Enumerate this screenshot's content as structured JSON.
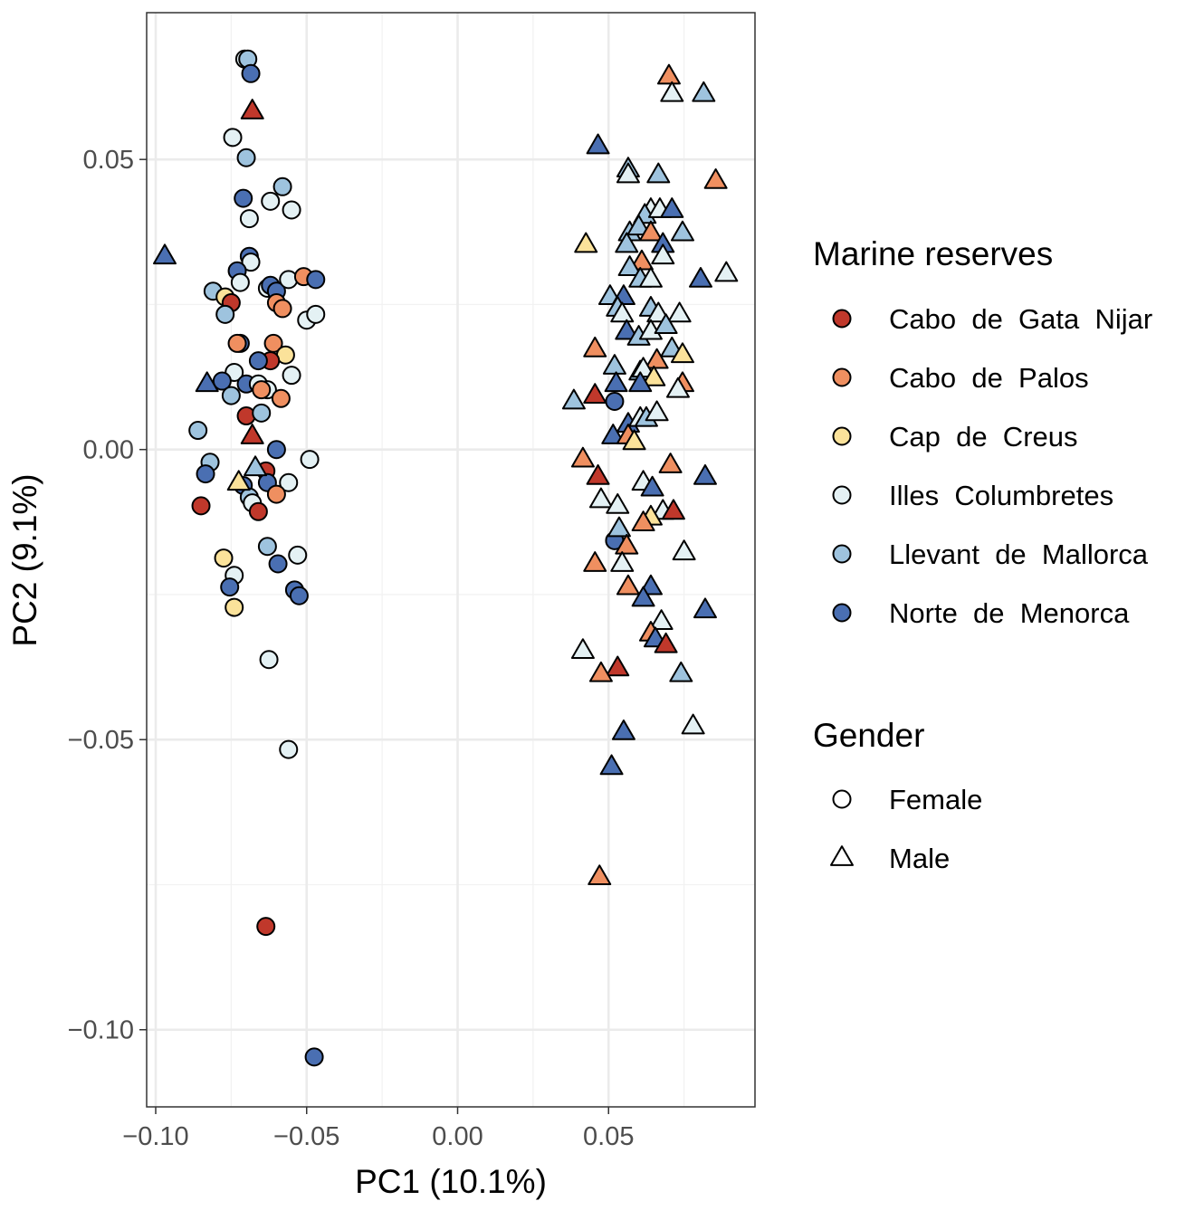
{
  "chart_data": {
    "type": "scatter",
    "xlabel": "PC1 (10.1%)",
    "ylabel": "PC2 (9.1%)",
    "xlim": [
      -0.103,
      0.0985
    ],
    "ylim": [
      -0.1133,
      0.0753
    ],
    "x_ticks": [
      -0.1,
      -0.05,
      0.0,
      0.05
    ],
    "x_tick_labels": [
      "−0.10",
      "−0.05",
      "0.00",
      "0.05"
    ],
    "y_ticks": [
      0.05,
      0.0,
      -0.05,
      -0.1
    ],
    "y_tick_labels": [
      "0.05",
      "0.00",
      "−0.05",
      "−0.10"
    ],
    "grid": true,
    "legend_position": "right",
    "legend": {
      "color_title": "Marine reserves",
      "color_entries": [
        {
          "key": "gata",
          "label": "Cabo  de  Gata  Nijar",
          "color": "#c0382b"
        },
        {
          "key": "palos",
          "label": "Cabo  de  Palos",
          "color": "#ef8f60"
        },
        {
          "key": "creus",
          "label": "Cap  de  Creus",
          "color": "#fbe29a"
        },
        {
          "key": "colum",
          "label": "Illes  Columbretes",
          "color": "#e4f1f4"
        },
        {
          "key": "llev",
          "label": "Llevant  de  Mallorca",
          "color": "#9ec3de"
        },
        {
          "key": "norte",
          "label": "Norte  de  Menorca",
          "color": "#4a6fb2"
        }
      ],
      "shape_title": "Gender",
      "shape_entries": [
        {
          "key": "F",
          "label": "Female",
          "shape": "circle"
        },
        {
          "key": "M",
          "label": "Male",
          "shape": "triangle"
        }
      ]
    },
    "points": [
      [
        -0.0705,
        0.0673,
        "colum",
        "F"
      ],
      [
        -0.0695,
        0.0673,
        "llev",
        "F"
      ],
      [
        -0.0685,
        0.0648,
        "norte",
        "F"
      ],
      [
        -0.0745,
        0.0538,
        "colum",
        "F"
      ],
      [
        -0.07,
        0.0503,
        "llev",
        "F"
      ],
      [
        -0.071,
        0.0433,
        "norte",
        "F"
      ],
      [
        -0.069,
        0.0398,
        "colum",
        "F"
      ],
      [
        -0.062,
        0.0428,
        "colum",
        "F"
      ],
      [
        -0.058,
        0.0453,
        "llev",
        "F"
      ],
      [
        -0.055,
        0.0413,
        "colum",
        "F"
      ],
      [
        -0.069,
        0.0333,
        "norte",
        "F"
      ],
      [
        -0.0685,
        0.0323,
        "colum",
        "F"
      ],
      [
        -0.073,
        0.0308,
        "norte",
        "F"
      ],
      [
        -0.072,
        0.0288,
        "colum",
        "F"
      ],
      [
        -0.063,
        0.0278,
        "colum",
        "F"
      ],
      [
        -0.062,
        0.0283,
        "norte",
        "F"
      ],
      [
        -0.06,
        0.0273,
        "norte",
        "F"
      ],
      [
        -0.056,
        0.0293,
        "colum",
        "F"
      ],
      [
        -0.051,
        0.0298,
        "palos",
        "F"
      ],
      [
        -0.047,
        0.0293,
        "norte",
        "F"
      ],
      [
        -0.081,
        0.0273,
        "llev",
        "F"
      ],
      [
        -0.077,
        0.0263,
        "creus",
        "F"
      ],
      [
        -0.075,
        0.0253,
        "gata",
        "F"
      ],
      [
        -0.077,
        0.0233,
        "llev",
        "F"
      ],
      [
        -0.06,
        0.0253,
        "palos",
        "F"
      ],
      [
        -0.058,
        0.0243,
        "palos",
        "F"
      ],
      [
        -0.05,
        0.0223,
        "colum",
        "F"
      ],
      [
        -0.047,
        0.0233,
        "colum",
        "F"
      ],
      [
        -0.072,
        0.0183,
        "norte",
        "F"
      ],
      [
        -0.073,
        0.0183,
        "palos",
        "F"
      ],
      [
        -0.061,
        0.0183,
        "palos",
        "F"
      ],
      [
        -0.057,
        0.0163,
        "creus",
        "F"
      ],
      [
        -0.062,
        0.0153,
        "gata",
        "F"
      ],
      [
        -0.066,
        0.0153,
        "norte",
        "F"
      ],
      [
        -0.074,
        0.0133,
        "colum",
        "F"
      ],
      [
        -0.078,
        0.0118,
        "norte",
        "F"
      ],
      [
        -0.07,
        0.0113,
        "norte",
        "F"
      ],
      [
        -0.075,
        0.0093,
        "llev",
        "F"
      ],
      [
        -0.066,
        0.0113,
        "colum",
        "F"
      ],
      [
        -0.063,
        0.0103,
        "colum",
        "F"
      ],
      [
        -0.065,
        0.0103,
        "palos",
        "F"
      ],
      [
        -0.055,
        0.0128,
        "colum",
        "F"
      ],
      [
        -0.0585,
        0.0088,
        "palos",
        "F"
      ],
      [
        -0.07,
        0.0058,
        "gata",
        "F"
      ],
      [
        -0.065,
        0.0063,
        "llev",
        "F"
      ],
      [
        -0.086,
        0.0033,
        "llev",
        "F"
      ],
      [
        -0.082,
        -0.0022,
        "llev",
        "F"
      ],
      [
        -0.0835,
        -0.0042,
        "norte",
        "F"
      ],
      [
        -0.06,
        0.0,
        "norte",
        "F"
      ],
      [
        -0.049,
        -0.0017,
        "colum",
        "F"
      ],
      [
        -0.0635,
        -0.0037,
        "gata",
        "F"
      ],
      [
        -0.063,
        -0.0057,
        "norte",
        "F"
      ],
      [
        -0.056,
        -0.0057,
        "colum",
        "F"
      ],
      [
        -0.071,
        -0.0062,
        "norte",
        "F"
      ],
      [
        -0.069,
        -0.0082,
        "llev",
        "F"
      ],
      [
        -0.068,
        -0.0092,
        "colum",
        "F"
      ],
      [
        -0.06,
        -0.0077,
        "palos",
        "F"
      ],
      [
        -0.085,
        -0.0097,
        "gata",
        "F"
      ],
      [
        -0.066,
        -0.0107,
        "gata",
        "F"
      ],
      [
        -0.063,
        -0.0167,
        "llev",
        "F"
      ],
      [
        -0.053,
        -0.0182,
        "colum",
        "F"
      ],
      [
        -0.0775,
        -0.0187,
        "creus",
        "F"
      ],
      [
        -0.0595,
        -0.0197,
        "norte",
        "F"
      ],
      [
        -0.074,
        -0.0217,
        "colum",
        "F"
      ],
      [
        -0.0755,
        -0.0237,
        "norte",
        "F"
      ],
      [
        -0.054,
        -0.0242,
        "norte",
        "F"
      ],
      [
        -0.0525,
        -0.0252,
        "norte",
        "F"
      ],
      [
        -0.074,
        -0.0272,
        "creus",
        "F"
      ],
      [
        -0.0625,
        -0.0362,
        "colum",
        "F"
      ],
      [
        -0.056,
        -0.0517,
        "colum",
        "F"
      ],
      [
        -0.0635,
        -0.0822,
        "gata",
        "F"
      ],
      [
        -0.0475,
        -0.1047,
        "norte",
        "F"
      ],
      [
        0.052,
        0.0083,
        "norte",
        "F"
      ],
      [
        0.052,
        -0.0157,
        "norte",
        "F"
      ],
      [
        -0.068,
        0.0583,
        "gata",
        "M"
      ],
      [
        -0.097,
        0.0333,
        "norte",
        "M"
      ],
      [
        -0.083,
        0.0113,
        "norte",
        "M"
      ],
      [
        -0.068,
        0.0023,
        "gata",
        "M"
      ],
      [
        -0.0725,
        -0.0057,
        "creus",
        "M"
      ],
      [
        -0.067,
        -0.0032,
        "llev",
        "M"
      ],
      [
        0.07,
        0.0643,
        "palos",
        "M"
      ],
      [
        0.071,
        0.0613,
        "colum",
        "M"
      ],
      [
        0.0815,
        0.0613,
        "llev",
        "M"
      ],
      [
        0.0465,
        0.0523,
        "norte",
        "M"
      ],
      [
        0.0565,
        0.0483,
        "llev",
        "M"
      ],
      [
        0.0565,
        0.0473,
        "colum",
        "M"
      ],
      [
        0.0665,
        0.0473,
        "llev",
        "M"
      ],
      [
        0.0855,
        0.0463,
        "palos",
        "M"
      ],
      [
        0.064,
        0.0413,
        "colum",
        "M"
      ],
      [
        0.062,
        0.0403,
        "llev",
        "M"
      ],
      [
        0.067,
        0.0413,
        "colum",
        "M"
      ],
      [
        0.071,
        0.0413,
        "norte",
        "M"
      ],
      [
        0.057,
        0.0373,
        "llev",
        "M"
      ],
      [
        0.056,
        0.0353,
        "llev",
        "M"
      ],
      [
        0.06,
        0.0383,
        "llev",
        "M"
      ],
      [
        0.064,
        0.0373,
        "palos",
        "M"
      ],
      [
        0.0745,
        0.0373,
        "llev",
        "M"
      ],
      [
        0.0425,
        0.0353,
        "creus",
        "M"
      ],
      [
        0.068,
        0.0353,
        "norte",
        "M"
      ],
      [
        0.068,
        0.0333,
        "colum",
        "M"
      ],
      [
        0.061,
        0.0323,
        "palos",
        "M"
      ],
      [
        0.057,
        0.0313,
        "llev",
        "M"
      ],
      [
        0.0605,
        0.0293,
        "llev",
        "M"
      ],
      [
        0.064,
        0.0293,
        "colum",
        "M"
      ],
      [
        0.0805,
        0.0293,
        "norte",
        "M"
      ],
      [
        0.089,
        0.0303,
        "colum",
        "M"
      ],
      [
        0.0505,
        0.0263,
        "llev",
        "M"
      ],
      [
        0.055,
        0.0263,
        "norte",
        "M"
      ],
      [
        0.053,
        0.0243,
        "llev",
        "M"
      ],
      [
        0.0545,
        0.0233,
        "colum",
        "M"
      ],
      [
        0.064,
        0.0243,
        "llev",
        "M"
      ],
      [
        0.0665,
        0.0233,
        "colum",
        "M"
      ],
      [
        0.0735,
        0.0233,
        "colum",
        "M"
      ],
      [
        0.056,
        0.0203,
        "norte",
        "M"
      ],
      [
        0.06,
        0.0193,
        "llev",
        "M"
      ],
      [
        0.064,
        0.0203,
        "colum",
        "M"
      ],
      [
        0.069,
        0.0213,
        "llev",
        "M"
      ],
      [
        0.0455,
        0.0173,
        "palos",
        "M"
      ],
      [
        0.071,
        0.0173,
        "llev",
        "M"
      ],
      [
        0.0745,
        0.0163,
        "creus",
        "M"
      ],
      [
        0.066,
        0.0153,
        "palos",
        "M"
      ],
      [
        0.052,
        0.0143,
        "llev",
        "M"
      ],
      [
        0.0605,
        0.0133,
        "llev",
        "M"
      ],
      [
        0.0615,
        0.0138,
        "colum",
        "M"
      ],
      [
        0.065,
        0.0123,
        "creus",
        "M"
      ],
      [
        0.0525,
        0.0113,
        "norte",
        "M"
      ],
      [
        0.0605,
        0.0113,
        "norte",
        "M"
      ],
      [
        0.0745,
        0.0113,
        "palos",
        "M"
      ],
      [
        0.073,
        0.0103,
        "colum",
        "M"
      ],
      [
        0.0455,
        0.0093,
        "gata",
        "M"
      ],
      [
        0.0385,
        0.0083,
        "llev",
        "M"
      ],
      [
        0.0565,
        0.0043,
        "norte",
        "M"
      ],
      [
        0.0605,
        0.0053,
        "colum",
        "M"
      ],
      [
        0.0625,
        0.0053,
        "llev",
        "M"
      ],
      [
        0.066,
        0.0063,
        "colum",
        "M"
      ],
      [
        0.0515,
        0.0023,
        "norte",
        "M"
      ],
      [
        0.0565,
        0.0023,
        "palos",
        "M"
      ],
      [
        0.0585,
        0.0013,
        "creus",
        "M"
      ],
      [
        0.0415,
        -0.0017,
        "palos",
        "M"
      ],
      [
        0.0465,
        -0.0047,
        "gata",
        "M"
      ],
      [
        0.0705,
        -0.0027,
        "palos",
        "M"
      ],
      [
        0.082,
        -0.0047,
        "norte",
        "M"
      ],
      [
        0.0615,
        -0.0057,
        "colum",
        "M"
      ],
      [
        0.0645,
        -0.0067,
        "norte",
        "M"
      ],
      [
        0.0475,
        -0.0087,
        "colum",
        "M"
      ],
      [
        0.053,
        -0.0097,
        "colum",
        "M"
      ],
      [
        0.068,
        -0.0107,
        "colum",
        "M"
      ],
      [
        0.0715,
        -0.0107,
        "gata",
        "M"
      ],
      [
        0.064,
        -0.0117,
        "creus",
        "M"
      ],
      [
        0.0615,
        -0.0127,
        "palos",
        "M"
      ],
      [
        0.0535,
        -0.0137,
        "llev",
        "M"
      ],
      [
        0.056,
        -0.0167,
        "palos",
        "M"
      ],
      [
        0.075,
        -0.0177,
        "colum",
        "M"
      ],
      [
        0.0455,
        -0.0197,
        "palos",
        "M"
      ],
      [
        0.0545,
        -0.0197,
        "colum",
        "M"
      ],
      [
        0.0565,
        -0.0237,
        "palos",
        "M"
      ],
      [
        0.064,
        -0.0237,
        "norte",
        "M"
      ],
      [
        0.0615,
        -0.0257,
        "norte",
        "M"
      ],
      [
        0.082,
        -0.0277,
        "norte",
        "M"
      ],
      [
        0.0675,
        -0.0297,
        "colum",
        "M"
      ],
      [
        0.064,
        -0.0317,
        "palos",
        "M"
      ],
      [
        0.0655,
        -0.0327,
        "norte",
        "M"
      ],
      [
        0.069,
        -0.0337,
        "gata",
        "M"
      ],
      [
        0.0415,
        -0.0347,
        "colum",
        "M"
      ],
      [
        0.053,
        -0.0377,
        "gata",
        "M"
      ],
      [
        0.0475,
        -0.0387,
        "palos",
        "M"
      ],
      [
        0.074,
        -0.0387,
        "llev",
        "M"
      ],
      [
        0.078,
        -0.0477,
        "colum",
        "M"
      ],
      [
        0.055,
        -0.0487,
        "norte",
        "M"
      ],
      [
        0.051,
        -0.0547,
        "norte",
        "M"
      ],
      [
        0.047,
        -0.0737,
        "palos",
        "M"
      ]
    ]
  }
}
